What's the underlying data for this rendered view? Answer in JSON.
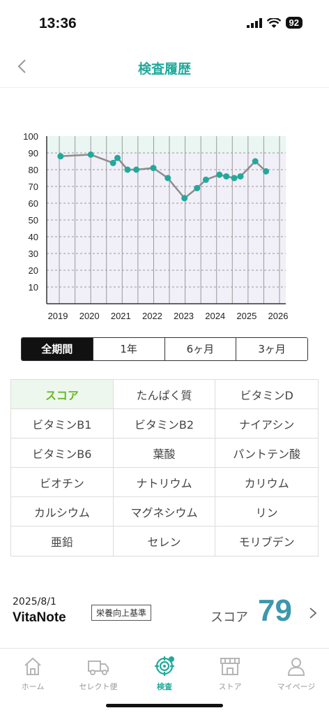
{
  "status_bar": {
    "time": "13:36",
    "battery": "92"
  },
  "nav": {
    "title": "検査履歴"
  },
  "chart_data": {
    "type": "line",
    "title": "",
    "xlabel": "",
    "ylabel": "",
    "xlim": [
      2018.6,
      2026.2
    ],
    "ylim": [
      0,
      100
    ],
    "x_ticks": [
      "2019",
      "2020",
      "2021",
      "2022",
      "2023",
      "2024",
      "2025",
      "2026"
    ],
    "y_ticks": [
      "10",
      "20",
      "30",
      "40",
      "50",
      "60",
      "70",
      "80",
      "90",
      "100"
    ],
    "series": [
      {
        "x": [
          2019.04,
          2020.0,
          2020.71,
          2020.85,
          2021.17,
          2021.45,
          2021.99,
          2022.45,
          2022.98,
          2023.38,
          2023.66,
          2024.09,
          2024.31,
          2024.56,
          2024.76,
          2025.23,
          2025.57
        ],
        "values": [
          88,
          89,
          84,
          87,
          80,
          80,
          81,
          75,
          63,
          69,
          74,
          77,
          76,
          75,
          76,
          85,
          79
        ]
      }
    ],
    "grid": true,
    "colors": {
      "line": "#8c8c8c",
      "point": "#21a99c",
      "plot_bg": "#f1eff7",
      "top_band": "#e9f6f2"
    }
  },
  "period_tabs": [
    "全期間",
    "1年",
    "6ヶ月",
    "3ヶ月"
  ],
  "nutrients": [
    "スコア",
    "たんぱく質",
    "ビタミンD",
    "ビタミンB1",
    "ビタミンB2",
    "ナイアシン",
    "ビタミンB6",
    "葉酸",
    "パントテン酸",
    "ビオチン",
    "ナトリウム",
    "カリウム",
    "カルシウム",
    "マグネシウム",
    "リン",
    "亜鉛",
    "セレン",
    "モリブデン"
  ],
  "history": {
    "date": "2025/8/1",
    "brand": "VitaNote",
    "badge": "栄養向上基準",
    "score_label": "スコア",
    "score": "79"
  },
  "tab_bar": {
    "items": [
      {
        "label": "ホーム",
        "icon": "home-icon"
      },
      {
        "label": "セレクト便",
        "icon": "delivery-truck-icon"
      },
      {
        "label": "検査",
        "icon": "target-icon"
      },
      {
        "label": "ストア",
        "icon": "store-icon"
      },
      {
        "label": "マイページ",
        "icon": "user-icon"
      }
    ]
  },
  "colors": {
    "accent": "#21a99c",
    "score": "#3d97ad",
    "selected_green": "#6ab82a"
  }
}
